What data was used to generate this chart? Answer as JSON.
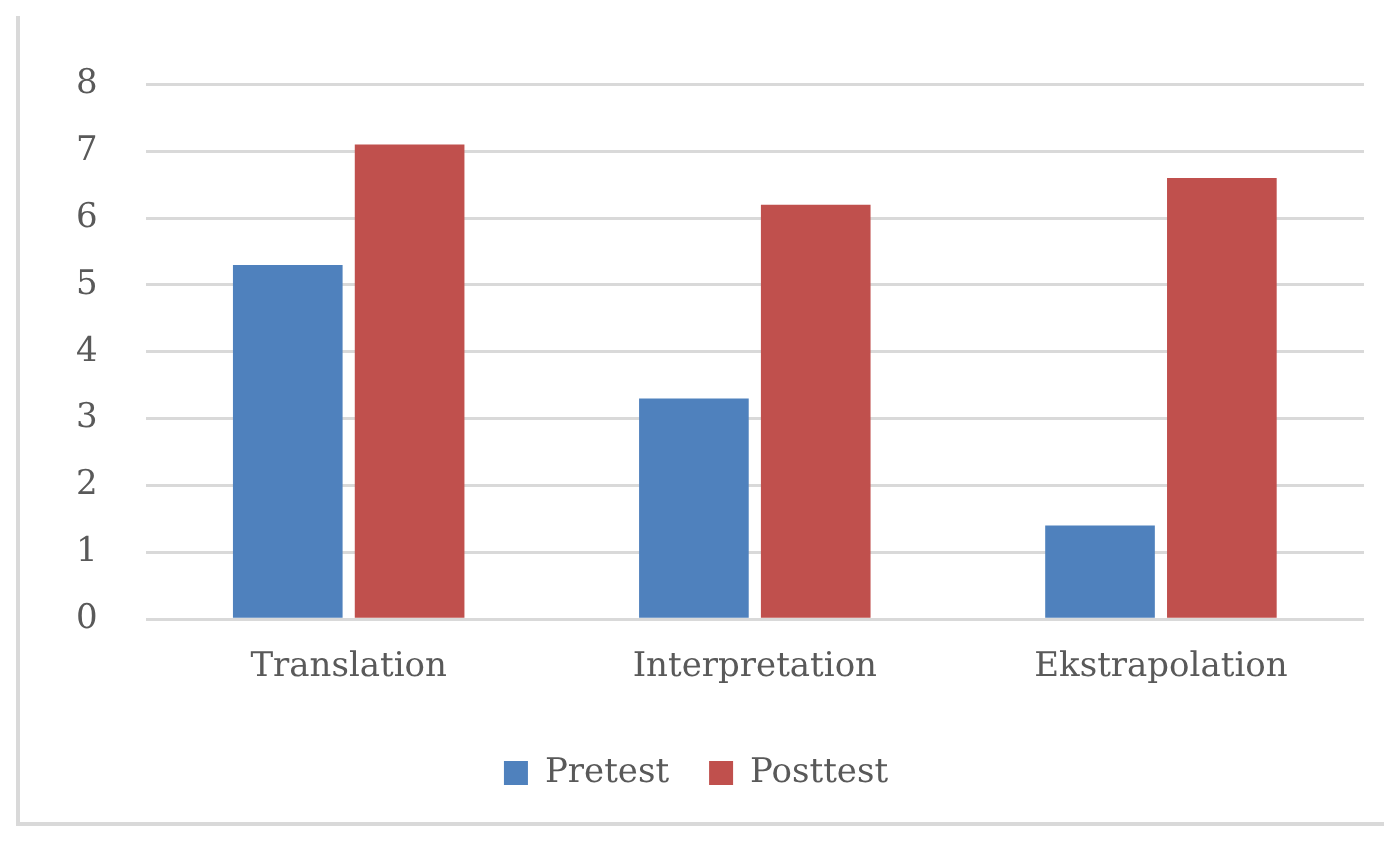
{
  "chart_data": {
    "type": "bar",
    "categories": [
      "Translation",
      "Interpretation",
      "Ekstrapolation"
    ],
    "series": [
      {
        "name": "Pretest",
        "color": "#4f81bd",
        "values": [
          5.3,
          3.3,
          1.4
        ]
      },
      {
        "name": "Posttest",
        "color": "#c0504d",
        "values": [
          7.1,
          6.2,
          6.6
        ]
      }
    ],
    "ylim": [
      0,
      8
    ],
    "yticks": [
      0,
      1,
      2,
      3,
      4,
      5,
      6,
      7,
      8
    ],
    "grid": "y",
    "legend": "bottom"
  }
}
